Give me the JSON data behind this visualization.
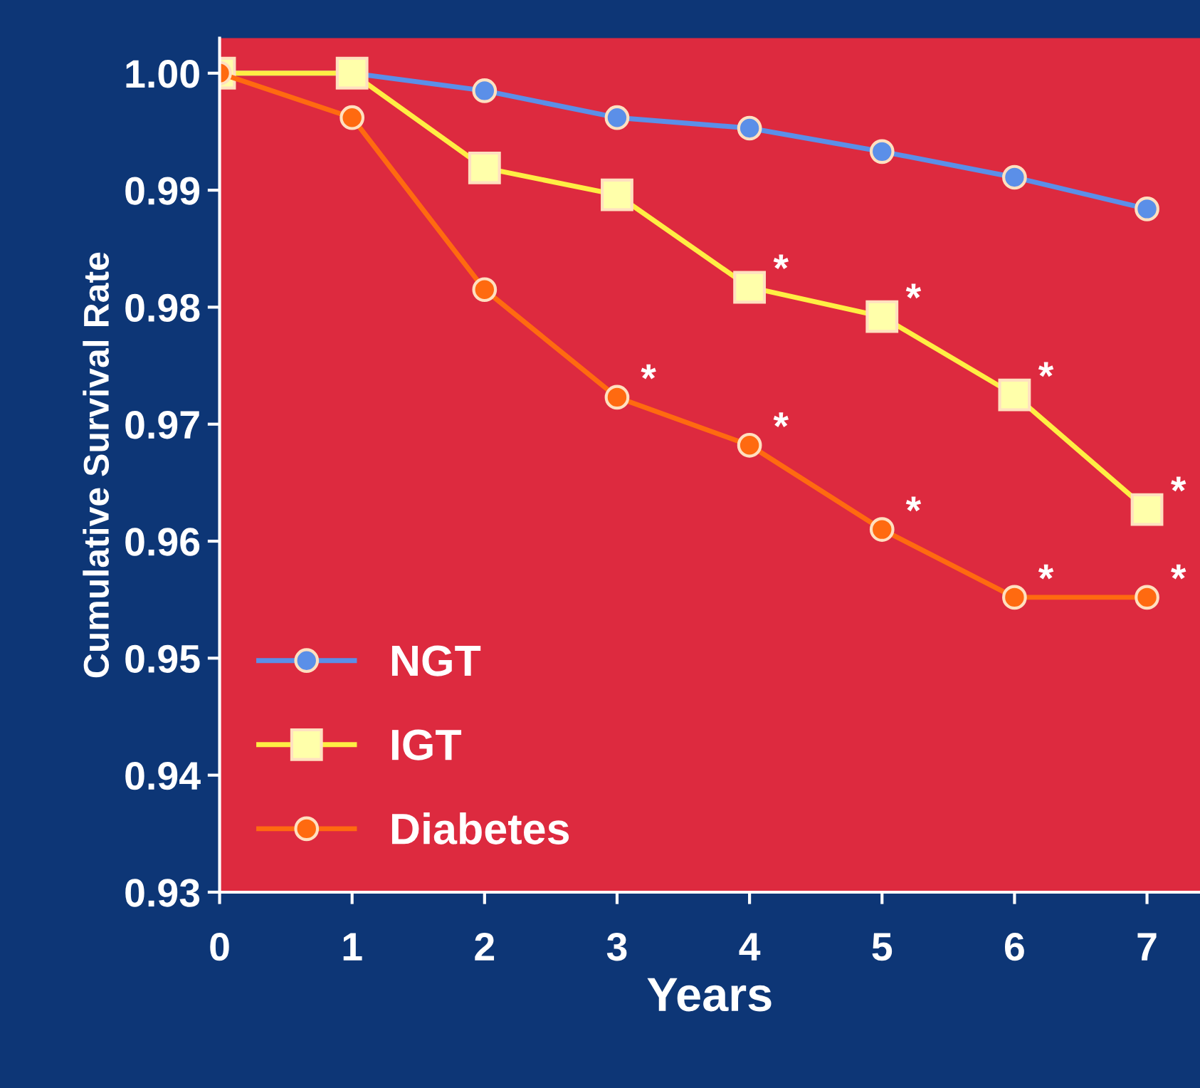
{
  "chart_data": {
    "type": "line",
    "xlabel": "Years",
    "ylabel": "Cumulative Survival Rate",
    "x": [
      0,
      1,
      2,
      3,
      4,
      5,
      6,
      7
    ],
    "series": [
      {
        "name": "NGT",
        "color": "#5b8fe8",
        "marker": "circle",
        "values": [
          1.0,
          1.0,
          0.9985,
          0.9962,
          0.9953,
          0.9933,
          0.9911,
          0.9884
        ]
      },
      {
        "name": "IGT",
        "color": "#ffee44",
        "marker": "square",
        "values": [
          1.0,
          1.0,
          0.9919,
          0.9896,
          0.9817,
          0.9792,
          0.9725,
          0.9627
        ]
      },
      {
        "name": "Diabetes",
        "color": "#ff6a10",
        "marker": "circle",
        "values": [
          1.0,
          0.9962,
          0.9815,
          0.9723,
          0.9682,
          0.961,
          0.9552,
          0.9552
        ]
      }
    ],
    "annotations": [
      {
        "text": "*",
        "x": 4,
        "y": 0.9817
      },
      {
        "text": "*",
        "x": 5,
        "y": 0.9792
      },
      {
        "text": "*",
        "x": 6,
        "y": 0.9725
      },
      {
        "text": "*",
        "x": 7,
        "y": 0.9627
      },
      {
        "text": "*",
        "x": 3,
        "y": 0.9723
      },
      {
        "text": "*",
        "x": 4,
        "y": 0.9682
      },
      {
        "text": "*",
        "x": 5,
        "y": 0.961
      },
      {
        "text": "*",
        "x": 6,
        "y": 0.9552
      },
      {
        "text": "*",
        "x": 7,
        "y": 0.9552
      }
    ],
    "xlim": [
      0,
      7.4
    ],
    "ylim": [
      0.93,
      1.003
    ],
    "xticks": [
      0,
      1,
      2,
      3,
      4,
      5,
      6,
      7
    ],
    "yticks": [
      {
        "value": 0.93,
        "label": "0.93"
      },
      {
        "value": 0.94,
        "label": "0.94"
      },
      {
        "value": 0.95,
        "label": "0.95"
      },
      {
        "value": 0.96,
        "label": "0.96"
      },
      {
        "value": 0.97,
        "label": "0.97"
      },
      {
        "value": 0.98,
        "label": "0.98"
      },
      {
        "value": 0.99,
        "label": "0.99"
      },
      {
        "value": 1.0,
        "label": "1.00"
      }
    ],
    "legend": "bottom left",
    "grid": false,
    "line_style": "solid"
  }
}
